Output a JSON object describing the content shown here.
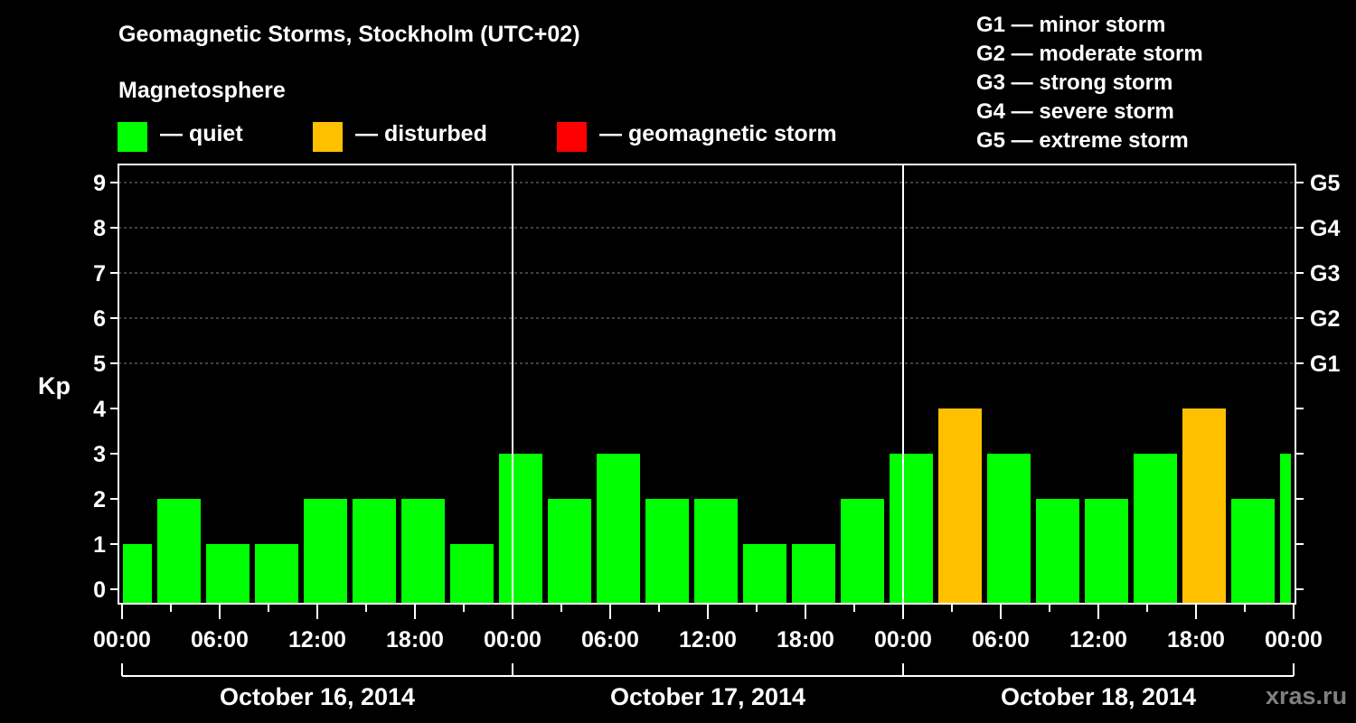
{
  "chart_data": {
    "type": "bar",
    "title": "Geomagnetic Storms, Stockholm (UTC+02)",
    "legend_title": "Magnetosphere",
    "legend": [
      {
        "label": "— quiet",
        "color": "#00ff00"
      },
      {
        "label": "— disturbed",
        "color": "#ffc000"
      },
      {
        "label": "— geomagnetic storm",
        "color": "#ff0000"
      }
    ],
    "storm_scale": [
      "G1 — minor storm",
      "G2 — moderate storm",
      "G3 — strong storm",
      "G4 — severe storm",
      "G5 — extreme storm"
    ],
    "ylabel": "Kp",
    "ylim": [
      0,
      9
    ],
    "yticks": [
      "0",
      "1",
      "2",
      "3",
      "4",
      "5",
      "6",
      "7",
      "8",
      "9"
    ],
    "right_ticks": [
      {
        "kp": 5,
        "label": "G1"
      },
      {
        "kp": 6,
        "label": "G2"
      },
      {
        "kp": 7,
        "label": "G3"
      },
      {
        "kp": 8,
        "label": "G4"
      },
      {
        "kp": 9,
        "label": "G5"
      }
    ],
    "x_range_hours": [
      0,
      72
    ],
    "xtick_labels": [
      "00:00",
      "06:00",
      "12:00",
      "18:00",
      "00:00",
      "06:00",
      "12:00",
      "18:00",
      "00:00",
      "06:00",
      "12:00",
      "18:00",
      "00:00"
    ],
    "days": [
      "October 16, 2014",
      "October 17, 2014",
      "October 18, 2014"
    ],
    "bar_interval_hours": 3,
    "first_bar_start_hour": -1.1667,
    "values": [
      1,
      2,
      1,
      1,
      2,
      2,
      2,
      1,
      3,
      2,
      3,
      2,
      2,
      1,
      1,
      2,
      3,
      4,
      3,
      2,
      2,
      3,
      4,
      2,
      3
    ],
    "thresholds": {
      "disturbed": 4,
      "storm": 5
    },
    "grid": "dashed at Kp 5-9"
  },
  "watermark": "xras.ru"
}
